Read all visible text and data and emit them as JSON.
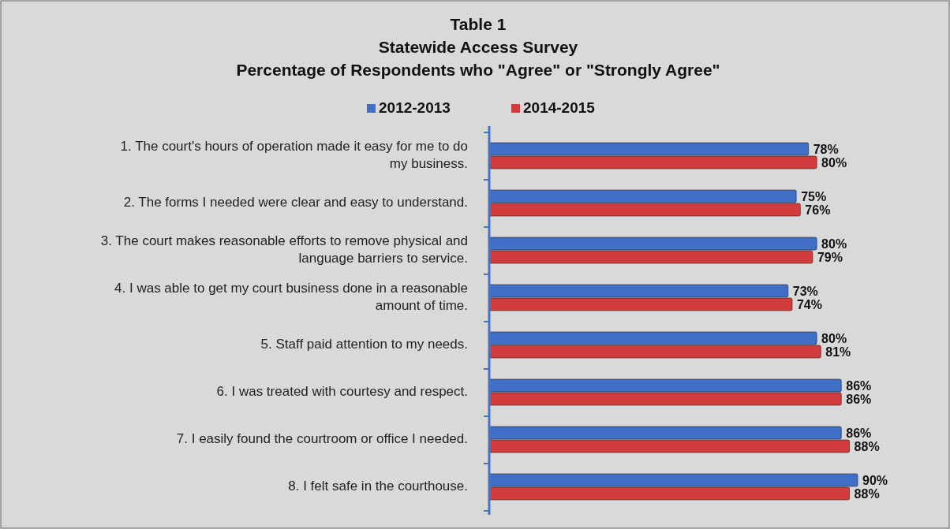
{
  "chart_data": {
    "type": "bar",
    "orientation": "horizontal",
    "title": "Table 1\nStatewide Access Survey\nPercentage of Respondents who \"Agree\" or \"Strongly Agree\"",
    "categories": [
      "1.  The court's hours of operation made it easy for me to do my business.",
      "2.  The forms I needed were clear and easy to understand.",
      "3.  The court makes reasonable efforts to remove physical and language barriers to service.",
      "4.  I was able to get my court business done in a reasonable amount of time.",
      "5.  Staff paid attention to my needs.",
      "6.  I was treated with courtesy and respect.",
      "7.  I easily found the courtroom or office I needed.",
      "8. I felt safe in the courthouse."
    ],
    "series": [
      {
        "name": "2012-2013",
        "color": "#3f6fc6",
        "values": [
          78,
          75,
          80,
          73,
          80,
          86,
          86,
          90
        ],
        "value_labels": [
          "78%",
          "75%",
          "80%",
          "73%",
          "80%",
          "86%",
          "86%",
          "90%"
        ]
      },
      {
        "name": "2014-2015",
        "color": "#d33c3c",
        "values": [
          80,
          76,
          79,
          74,
          81,
          86,
          88,
          88
        ],
        "value_labels": [
          "80%",
          "76%",
          "79%",
          "74%",
          "81%",
          "86%",
          "88%",
          "88%"
        ]
      }
    ],
    "legend": "top"
  }
}
